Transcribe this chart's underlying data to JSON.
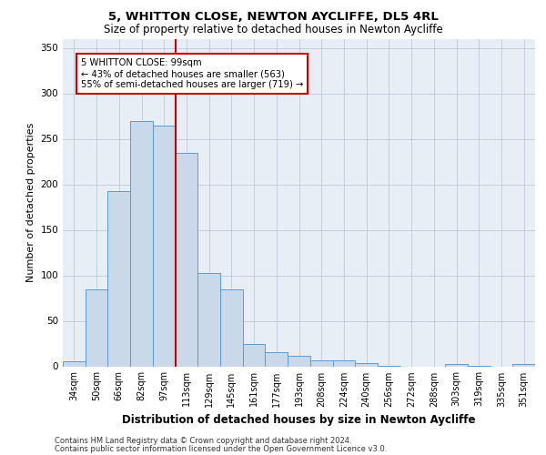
{
  "title1": "5, WHITTON CLOSE, NEWTON AYCLIFFE, DL5 4RL",
  "title2": "Size of property relative to detached houses in Newton Aycliffe",
  "xlabel": "Distribution of detached houses by size in Newton Aycliffe",
  "ylabel": "Number of detached properties",
  "categories": [
    "34sqm",
    "50sqm",
    "66sqm",
    "82sqm",
    "97sqm",
    "113sqm",
    "129sqm",
    "145sqm",
    "161sqm",
    "177sqm",
    "193sqm",
    "208sqm",
    "224sqm",
    "240sqm",
    "256sqm",
    "272sqm",
    "288sqm",
    "303sqm",
    "319sqm",
    "335sqm",
    "351sqm"
  ],
  "values": [
    6,
    85,
    193,
    270,
    265,
    235,
    103,
    85,
    25,
    16,
    12,
    7,
    7,
    4,
    1,
    0,
    0,
    3,
    1,
    0,
    3
  ],
  "bar_color": "#c9d9ea",
  "bar_edge_color": "#5b9bd5",
  "vline_x": 4.5,
  "annot_line1": "5 WHITTON CLOSE: 99sqm",
  "annot_line2": "← 43% of detached houses are smaller (563)",
  "annot_line3": "55% of semi-detached houses are larger (719) →",
  "vline_color": "#cc0000",
  "annotation_box_color": "#ffffff",
  "annotation_box_edge": "#cc0000",
  "plot_bg_color": "#e8eef5",
  "footer1": "Contains HM Land Registry data © Crown copyright and database right 2024.",
  "footer2": "Contains public sector information licensed under the Open Government Licence v3.0.",
  "ylim": [
    0,
    360
  ],
  "yticks": [
    0,
    50,
    100,
    150,
    200,
    250,
    300,
    350
  ]
}
